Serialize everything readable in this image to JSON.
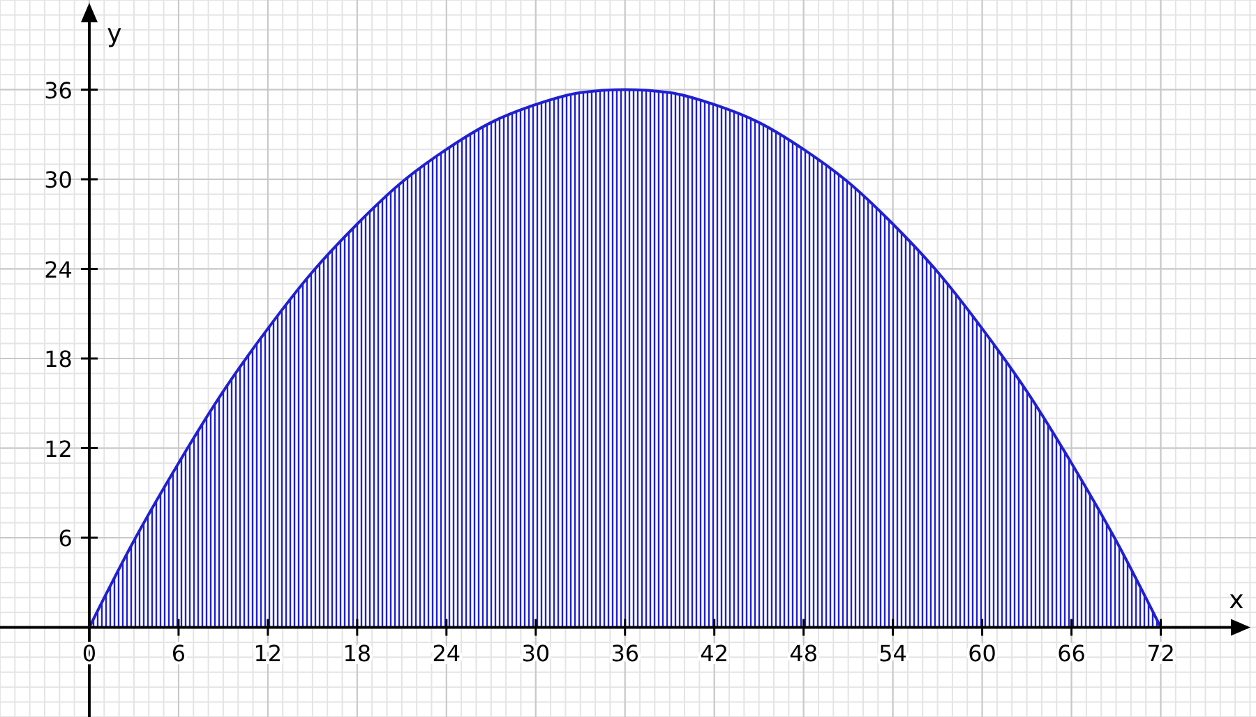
{
  "chart_data": {
    "type": "area",
    "xlabel": "x",
    "ylabel": "y",
    "x": [
      0,
      3,
      6,
      9,
      12,
      15,
      18,
      21,
      24,
      27,
      30,
      33,
      36,
      39,
      42,
      45,
      48,
      51,
      54,
      57,
      60,
      63,
      66,
      69,
      72
    ],
    "series": [
      {
        "color": "#2020d0",
        "values": [
          0,
          5.8,
          11,
          15.8,
          20,
          23.8,
          27,
          29.8,
          32,
          33.8,
          35,
          35.8,
          36,
          35.8,
          35,
          33.8,
          32,
          29.8,
          27,
          23.8,
          20,
          15.8,
          11,
          5.8,
          0
        ]
      }
    ],
    "xlim": [
      -6,
      78.4
    ],
    "ylim": [
      -6,
      42
    ],
    "xticks": [
      0,
      6,
      12,
      18,
      24,
      30,
      36,
      42,
      48,
      54,
      60,
      66,
      72
    ],
    "yticks": [
      6,
      12,
      18,
      24,
      30,
      36
    ],
    "grid": true
  }
}
